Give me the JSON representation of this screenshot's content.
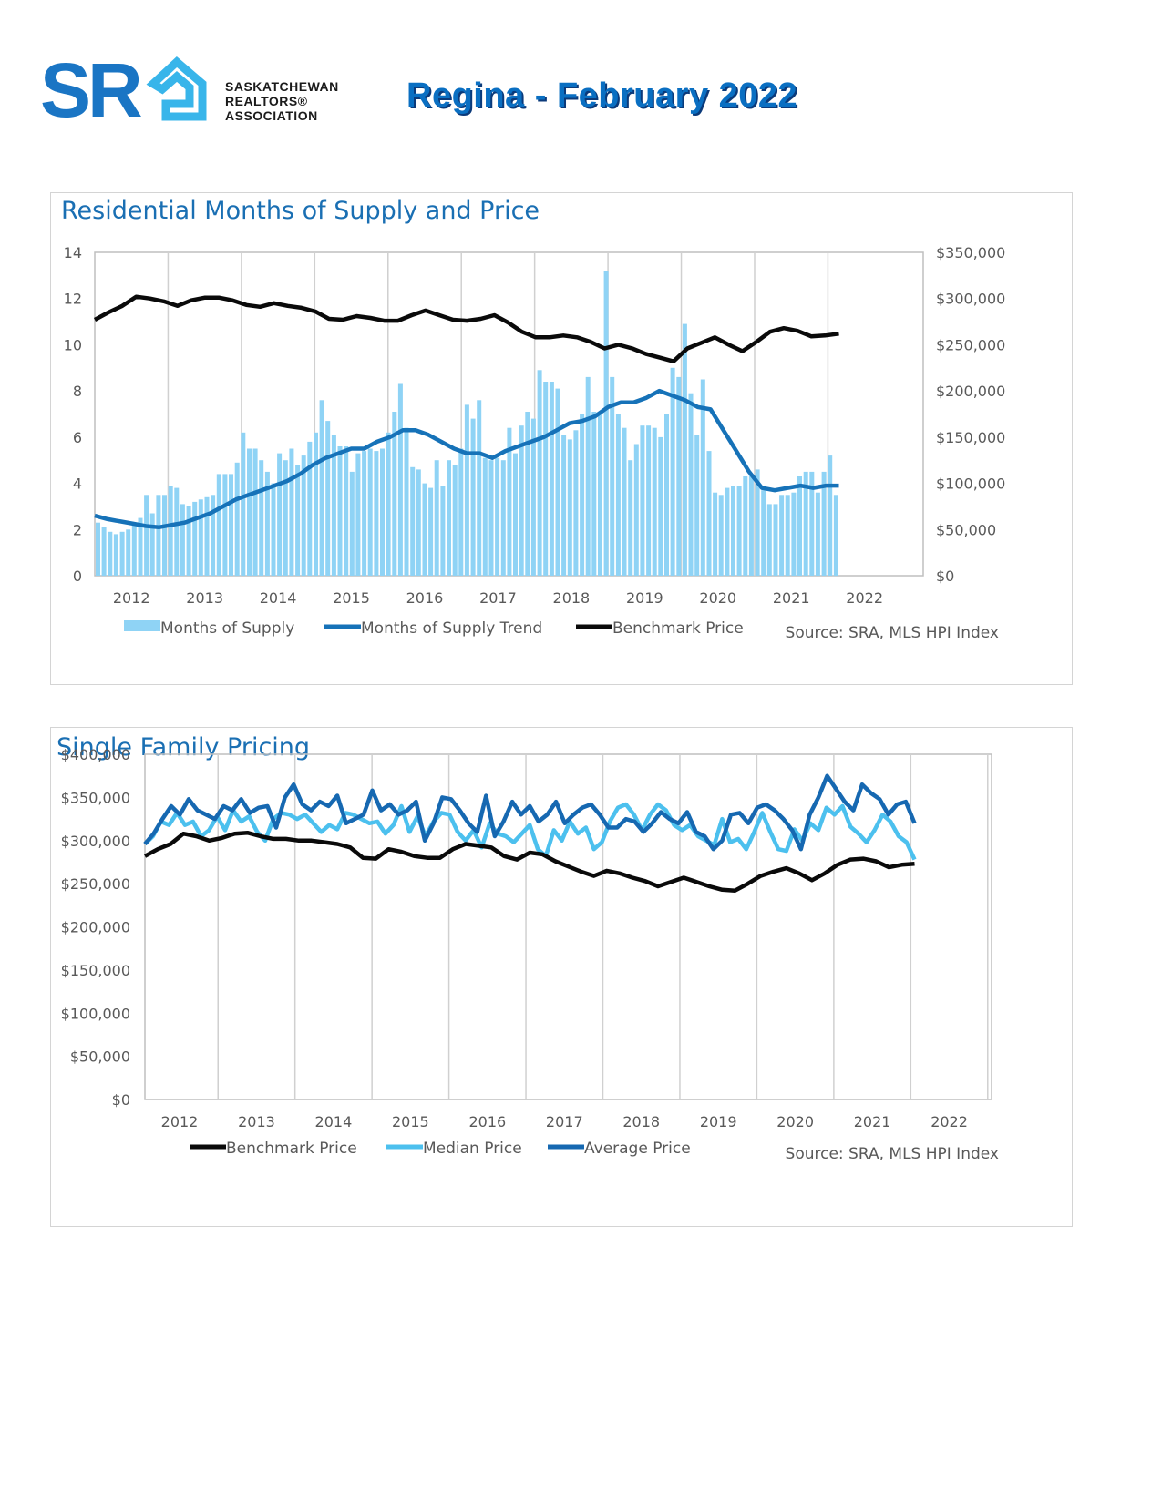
{
  "header": {
    "logo_letters": "SR",
    "logo_lines": [
      "SASKATCHEWAN",
      "REALTORS®",
      "ASSOCIATION"
    ],
    "title": "Regina - February 2022"
  },
  "colors": {
    "brand_blue": "#1a75c4",
    "bar_light": "#8fd3f5",
    "trend_blue": "#1672b8",
    "benchmark_black": "#0a0a0a",
    "median_light": "#4cc0ee",
    "average_blue": "#1668b1"
  },
  "chart_data": [
    {
      "type": "bar",
      "title": "Residential Months of Supply and Price",
      "x_start": 2011.5,
      "x_end": 2022.8,
      "xticks": [
        "2012",
        "2013",
        "2014",
        "2015",
        "2016",
        "2017",
        "2018",
        "2019",
        "2020",
        "2021",
        "2022"
      ],
      "ylim": [
        0,
        14
      ],
      "yticks": [
        "0",
        "2",
        "4",
        "6",
        "8",
        "10",
        "12",
        "14"
      ],
      "y2lim": [
        0,
        350000
      ],
      "y2ticks": [
        "$0",
        "$50,000",
        "$100,000",
        "$150,000",
        "$200,000",
        "$250,000",
        "$300,000",
        "$350,000"
      ],
      "legend": [
        "Months of Supply",
        "Months of Supply Trend",
        "Benchmark Price"
      ],
      "source": "Source: SRA, MLS HPI Index",
      "series": [
        {
          "name": "Months of Supply",
          "kind": "bar",
          "axis": "left",
          "values": [
            2.3,
            2.1,
            1.9,
            1.8,
            1.9,
            2.0,
            2.2,
            2.5,
            3.5,
            2.7,
            3.5,
            3.5,
            3.9,
            3.8,
            3.1,
            3.0,
            3.2,
            3.3,
            3.4,
            3.5,
            4.4,
            4.4,
            4.4,
            4.9,
            6.2,
            5.5,
            5.5,
            5.0,
            4.5,
            4.0,
            5.3,
            5.0,
            5.5,
            4.8,
            5.2,
            5.8,
            6.2,
            7.6,
            6.7,
            6.1,
            5.6,
            5.6,
            4.5,
            5.3,
            5.4,
            5.5,
            5.4,
            5.5,
            6.2,
            7.1,
            8.3,
            6.4,
            4.7,
            4.6,
            4.0,
            3.8,
            5.0,
            3.9,
            5.0,
            4.8,
            5.5,
            7.4,
            6.8,
            7.6,
            5.1,
            5.0,
            5.1,
            5.0,
            6.4,
            5.3,
            6.5,
            7.1,
            6.8,
            8.9,
            8.4,
            8.4,
            8.1,
            6.1,
            5.9,
            6.3,
            7.0,
            8.6,
            7.1,
            7.0,
            13.2,
            8.6,
            7.0,
            6.4,
            5.0,
            5.7,
            6.5,
            6.5,
            6.4,
            6.0,
            7.0,
            9.0,
            8.6,
            10.9,
            7.9,
            6.1,
            8.5,
            5.4,
            3.6,
            3.5,
            3.8,
            3.9,
            3.9,
            4.3,
            4.4,
            4.6,
            3.7,
            3.1,
            3.1,
            3.5,
            3.5,
            3.6,
            4.3,
            4.5,
            4.5,
            3.6,
            4.5,
            5.2,
            3.5
          ]
        },
        {
          "name": "Months of Supply Trend",
          "kind": "line",
          "axis": "left",
          "values": [
            2.6,
            2.45,
            2.35,
            2.25,
            2.15,
            2.1,
            2.2,
            2.3,
            2.5,
            2.7,
            3.0,
            3.3,
            3.5,
            3.7,
            3.9,
            4.1,
            4.4,
            4.8,
            5.1,
            5.3,
            5.5,
            5.5,
            5.8,
            6.0,
            6.3,
            6.3,
            6.1,
            5.8,
            5.5,
            5.3,
            5.3,
            5.1,
            5.4,
            5.6,
            5.8,
            6.0,
            6.3,
            6.6,
            6.7,
            6.9,
            7.3,
            7.5,
            7.5,
            7.7,
            8.0,
            7.8,
            7.6,
            7.3,
            7.2,
            6.3,
            5.4,
            4.5,
            3.8,
            3.7,
            3.8,
            3.9,
            3.8,
            3.9,
            3.9
          ]
        },
        {
          "name": "Benchmark Price",
          "kind": "line",
          "axis": "right",
          "values": [
            277000,
            285000,
            292000,
            302000,
            300000,
            297000,
            292000,
            298000,
            301000,
            301000,
            298000,
            293000,
            291000,
            295000,
            292000,
            290000,
            286000,
            278000,
            277000,
            281000,
            279000,
            276000,
            276000,
            282000,
            287000,
            282000,
            277000,
            276000,
            278000,
            282000,
            274000,
            264000,
            258000,
            258000,
            260000,
            258000,
            253000,
            246000,
            250000,
            246000,
            240000,
            236000,
            232000,
            246000,
            252000,
            258000,
            250000,
            243000,
            253000,
            264000,
            268000,
            265000,
            259000,
            260000,
            262000
          ]
        }
      ]
    },
    {
      "type": "line",
      "title": "Single Family Pricing",
      "x_start": 2011.55,
      "x_end": 2022.55,
      "xticks": [
        "2012",
        "2013",
        "2014",
        "2015",
        "2016",
        "2017",
        "2018",
        "2019",
        "2020",
        "2021",
        "2022"
      ],
      "ylim": [
        0,
        400000
      ],
      "yticks": [
        "$0",
        "$50,000",
        "$100,000",
        "$150,000",
        "$200,000",
        "$250,000",
        "$300,000",
        "$350,000",
        "$400,000"
      ],
      "legend": [
        "Benchmark Price",
        "Median Price",
        "Average Price"
      ],
      "source": "Source: SRA, MLS HPI Index",
      "series": [
        {
          "name": "Benchmark Price",
          "values": [
            282000,
            290000,
            296000,
            308000,
            305000,
            300000,
            303000,
            308000,
            309000,
            305000,
            302000,
            302000,
            300000,
            300000,
            298000,
            296000,
            292000,
            280000,
            279000,
            290000,
            287000,
            282000,
            280000,
            280000,
            290000,
            296000,
            294000,
            292000,
            282000,
            278000,
            286000,
            284000,
            276000,
            270000,
            264000,
            259000,
            265000,
            262000,
            257000,
            253000,
            247000,
            252000,
            257000,
            252000,
            247000,
            243000,
            242000,
            250000,
            259000,
            264000,
            268000,
            262000,
            254000,
            262000,
            272000,
            278000,
            279000,
            276000,
            269000,
            272000,
            273000
          ]
        },
        {
          "name": "Median Price",
          "values": [
            296000,
            305000,
            322000,
            318000,
            332000,
            318000,
            322000,
            305000,
            312000,
            328000,
            312000,
            335000,
            322000,
            328000,
            310000,
            300000,
            325000,
            332000,
            330000,
            325000,
            330000,
            320000,
            310000,
            318000,
            313000,
            332000,
            330000,
            325000,
            320000,
            322000,
            308000,
            318000,
            340000,
            310000,
            328000,
            305000,
            322000,
            332000,
            330000,
            310000,
            300000,
            312000,
            292000,
            320000,
            308000,
            305000,
            298000,
            308000,
            318000,
            290000,
            282000,
            312000,
            300000,
            322000,
            308000,
            315000,
            290000,
            298000,
            322000,
            338000,
            342000,
            330000,
            312000,
            330000,
            342000,
            335000,
            318000,
            312000,
            318000,
            305000,
            300000,
            295000,
            325000,
            298000,
            302000,
            290000,
            310000,
            332000,
            310000,
            290000,
            288000,
            313000,
            300000,
            320000,
            312000,
            338000,
            330000,
            340000,
            316000,
            308000,
            298000,
            312000,
            330000,
            322000,
            305000,
            298000,
            278000
          ]
        },
        {
          "name": "Average Price",
          "values": [
            296000,
            308000,
            325000,
            340000,
            330000,
            348000,
            335000,
            330000,
            325000,
            340000,
            335000,
            348000,
            332000,
            338000,
            340000,
            315000,
            350000,
            365000,
            342000,
            335000,
            345000,
            340000,
            352000,
            320000,
            325000,
            330000,
            358000,
            335000,
            342000,
            330000,
            335000,
            345000,
            300000,
            320000,
            350000,
            348000,
            335000,
            320000,
            310000,
            352000,
            305000,
            322000,
            345000,
            330000,
            340000,
            322000,
            330000,
            345000,
            320000,
            330000,
            338000,
            342000,
            330000,
            315000,
            315000,
            325000,
            322000,
            310000,
            320000,
            333000,
            325000,
            320000,
            333000,
            310000,
            305000,
            290000,
            300000,
            330000,
            332000,
            320000,
            338000,
            342000,
            335000,
            325000,
            312000,
            290000,
            330000,
            350000,
            375000,
            360000,
            345000,
            335000,
            365000,
            355000,
            348000,
            330000,
            342000,
            345000,
            320000
          ]
        }
      ]
    }
  ]
}
